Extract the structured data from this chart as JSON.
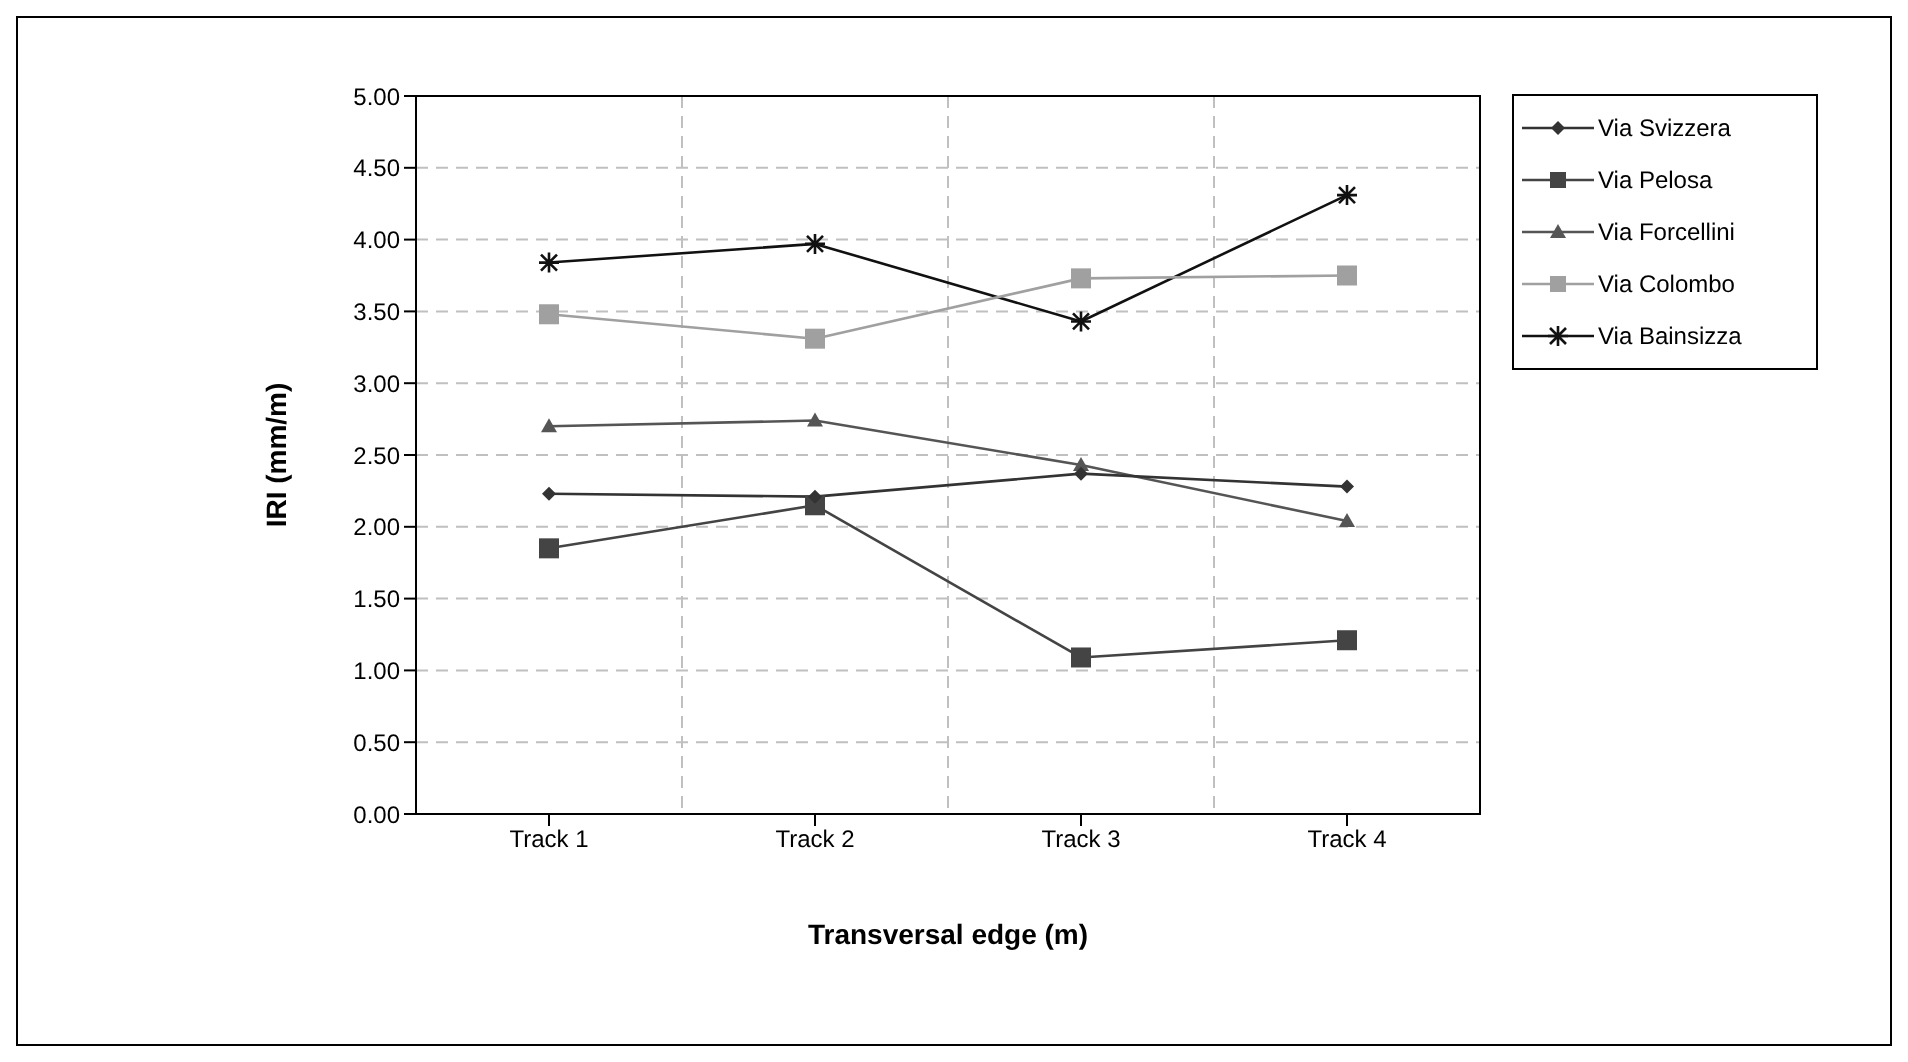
{
  "chart_data": {
    "type": "line",
    "xlabel": "Transversal edge (m)",
    "ylabel": "IRI (mm/m)",
    "categories": [
      "Track 1",
      "Track 2",
      "Track 3",
      "Track 4"
    ],
    "ylim": [
      0,
      5
    ],
    "yticks": [
      {
        "value": 0,
        "label": "0.00"
      },
      {
        "value": 0.5,
        "label": "0.50"
      },
      {
        "value": 1,
        "label": "1.00"
      },
      {
        "value": 1.5,
        "label": "1.50"
      },
      {
        "value": 2,
        "label": "2.00"
      },
      {
        "value": 2.5,
        "label": "2.50"
      },
      {
        "value": 3,
        "label": "3.00"
      },
      {
        "value": 3.5,
        "label": "3.50"
      },
      {
        "value": 4,
        "label": "4.00"
      },
      {
        "value": 4.5,
        "label": "4.50"
      },
      {
        "value": 5,
        "label": "5.00"
      }
    ],
    "grid": true,
    "legend": "right",
    "line_style": "solid",
    "series": [
      {
        "name": "Via Svizzera",
        "color": "#333333",
        "marker": "diamond",
        "values": [
          2.23,
          2.21,
          2.37,
          2.28
        ]
      },
      {
        "name": "Via Pelosa",
        "color": "#444444",
        "marker": "square",
        "values": [
          1.85,
          2.15,
          1.09,
          1.21
        ]
      },
      {
        "name": "Via Forcellini",
        "color": "#555555",
        "marker": "triangle",
        "values": [
          2.7,
          2.74,
          2.43,
          2.04
        ]
      },
      {
        "name": "Via Colombo",
        "color": "#a0a0a0",
        "marker": "square",
        "values": [
          3.48,
          3.31,
          3.73,
          3.75
        ]
      },
      {
        "name": "Via Bainsizza",
        "color": "#111111",
        "marker": "cross",
        "values": [
          3.84,
          3.97,
          3.43,
          4.31
        ]
      }
    ]
  }
}
